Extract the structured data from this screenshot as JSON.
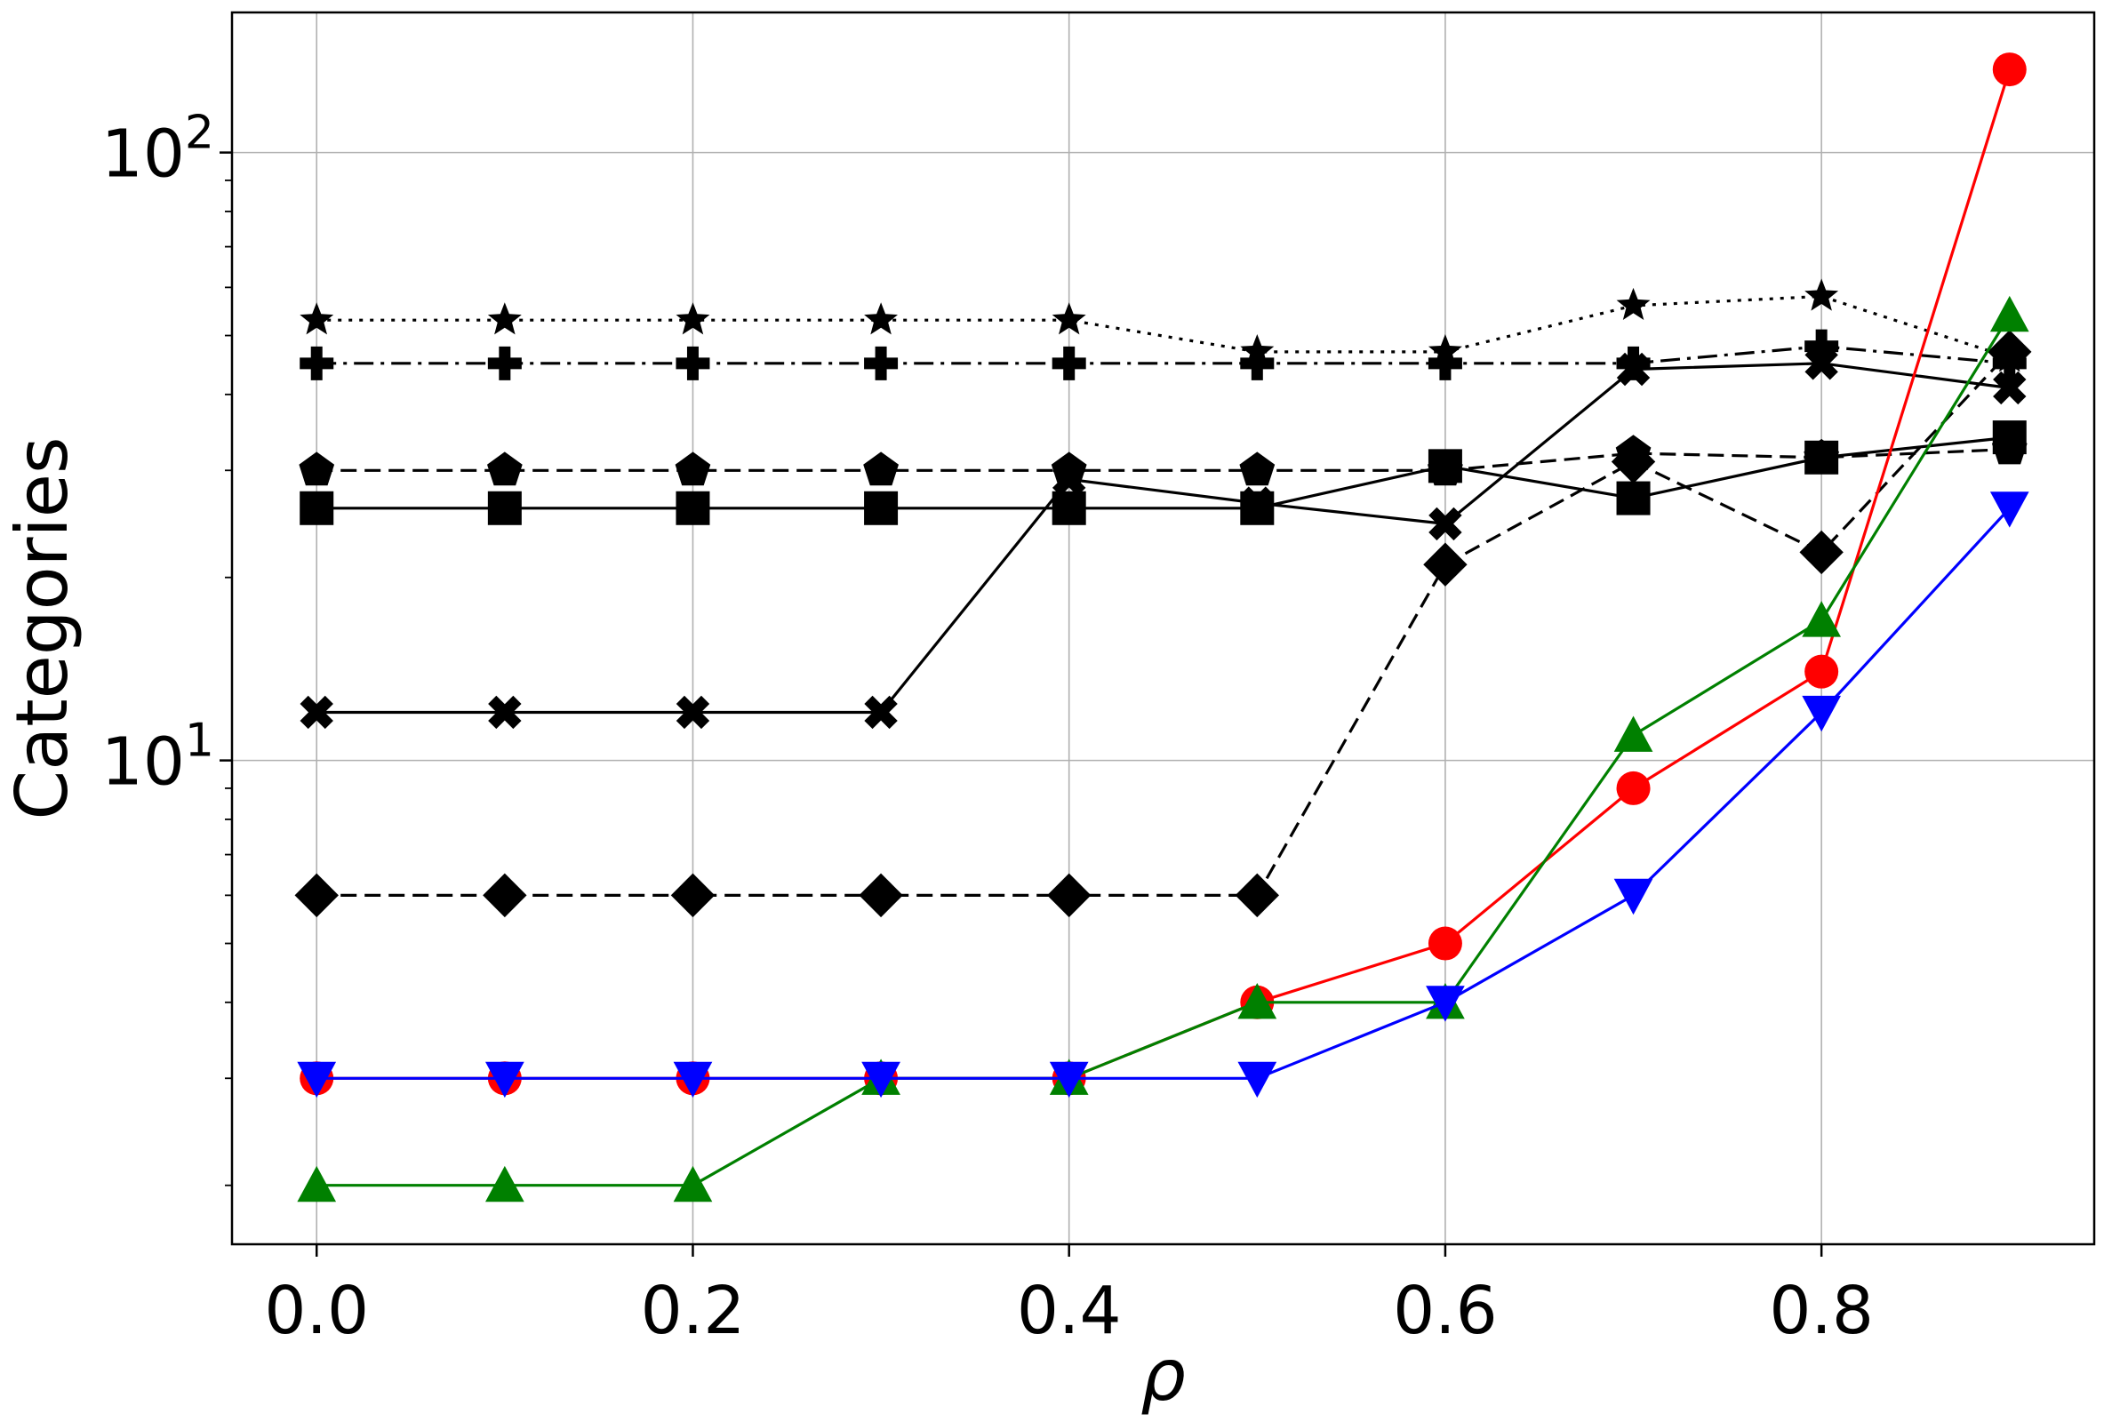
{
  "chart_data": {
    "type": "line",
    "title": "",
    "xlabel": "ρ",
    "ylabel": "Categories",
    "yscale": "log",
    "xlim": [
      -0.045,
      0.945
    ],
    "ylim": [
      1.6,
      170
    ],
    "grid": true,
    "legend": "none",
    "x": [
      0.0,
      0.1,
      0.2,
      0.3,
      0.4,
      0.5,
      0.6,
      0.7,
      0.8,
      0.9
    ],
    "xticks": [
      {
        "value": 0.0,
        "label": "0.0"
      },
      {
        "value": 0.2,
        "label": "0.2"
      },
      {
        "value": 0.4,
        "label": "0.4"
      },
      {
        "value": 0.6,
        "label": "0.6"
      },
      {
        "value": 0.8,
        "label": "0.8"
      }
    ],
    "yticks": [
      {
        "value": 10,
        "base": "10",
        "exp": "1"
      },
      {
        "value": 100,
        "base": "10",
        "exp": "2"
      }
    ],
    "series": [
      {
        "id": "star",
        "color": "#000000",
        "marker": "star",
        "dash": "dotted",
        "values": [
          53,
          53,
          53,
          53,
          53,
          47,
          47,
          56,
          58,
          46
        ]
      },
      {
        "id": "plus",
        "color": "#000000",
        "marker": "plus",
        "dash": "dashdot",
        "values": [
          45,
          45,
          45,
          45,
          45,
          45,
          45,
          45,
          48,
          45
        ]
      },
      {
        "id": "pentagon",
        "color": "#000000",
        "marker": "pentagon",
        "dash": "dashed",
        "values": [
          30,
          30,
          30,
          30,
          30,
          30,
          30,
          32,
          31.5,
          32.5
        ]
      },
      {
        "id": "square",
        "color": "#000000",
        "marker": "square",
        "dash": "solid",
        "values": [
          26,
          26,
          26,
          26,
          26,
          26,
          30.5,
          27,
          31.5,
          34
        ]
      },
      {
        "id": "x",
        "color": "#000000",
        "marker": "x",
        "dash": "solid",
        "values": [
          12,
          12,
          12,
          12,
          29,
          26.5,
          24.5,
          44,
          45,
          41
        ]
      },
      {
        "id": "diamond",
        "color": "#000000",
        "marker": "diamond",
        "dash": "dashed",
        "values": [
          6,
          6,
          6,
          6,
          6,
          6,
          21,
          31,
          22,
          47
        ]
      },
      {
        "id": "circle",
        "color": "#ff0000",
        "marker": "circle",
        "dash": "solid",
        "values": [
          3,
          3,
          3,
          3,
          3,
          4,
          5,
          9,
          14,
          137
        ]
      },
      {
        "id": "triangle-up",
        "color": "#008000",
        "marker": "triangle-up",
        "dash": "solid",
        "values": [
          2,
          2,
          2,
          3,
          3,
          4,
          4,
          11,
          17,
          54
        ]
      },
      {
        "id": "triangle-down",
        "color": "#0000ff",
        "marker": "triangle-down",
        "dash": "solid",
        "values": [
          3,
          3,
          3,
          3,
          3,
          3,
          4,
          6,
          12,
          26
        ]
      }
    ]
  }
}
